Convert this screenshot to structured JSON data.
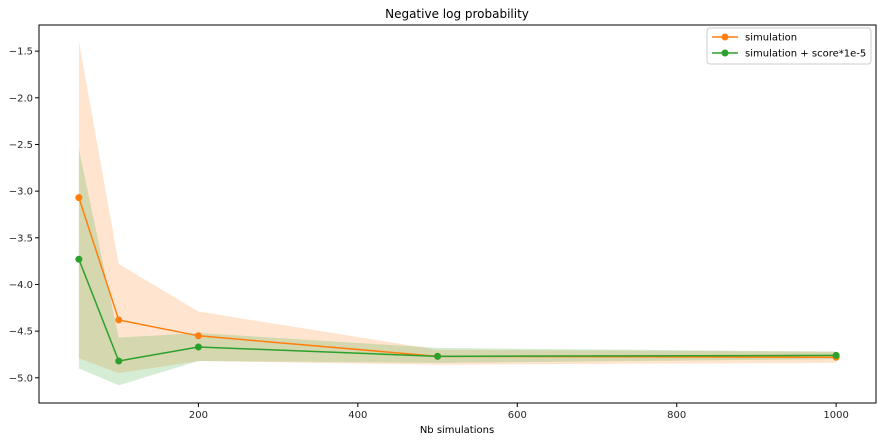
{
  "chart_data": {
    "type": "line",
    "title": "Negative log probability",
    "xlabel": "Nb simulations",
    "ylabel": "",
    "x": [
      50,
      100,
      200,
      500,
      1000
    ],
    "xlim": [
      0,
      1050
    ],
    "ylim": [
      -5.27,
      -1.22
    ],
    "xticks": [
      200,
      400,
      600,
      800,
      1000
    ],
    "yticks": [
      -5.0,
      -4.5,
      -4.0,
      -3.5,
      -3.0,
      -2.5,
      -2.0,
      -1.5
    ],
    "grid": false,
    "legend": "top-right",
    "series": [
      {
        "name": "simulation",
        "color": "#ff7f0e",
        "marker": "circle",
        "values": [
          -3.07,
          -4.38,
          -4.55,
          -4.77,
          -4.78
        ],
        "band_upper": [
          -1.39,
          -3.78,
          -4.29,
          -4.7,
          -4.72
        ],
        "band_lower": [
          -4.79,
          -4.95,
          -4.82,
          -4.86,
          -4.84
        ]
      },
      {
        "name": "simulation + score*1e-5",
        "color": "#2ca02c",
        "marker": "circle",
        "values": [
          -3.73,
          -4.82,
          -4.67,
          -4.77,
          -4.76
        ],
        "band_upper": [
          -2.55,
          -4.57,
          -4.52,
          -4.68,
          -4.72
        ],
        "band_lower": [
          -4.9,
          -5.08,
          -4.82,
          -4.84,
          -4.8
        ]
      }
    ]
  }
}
